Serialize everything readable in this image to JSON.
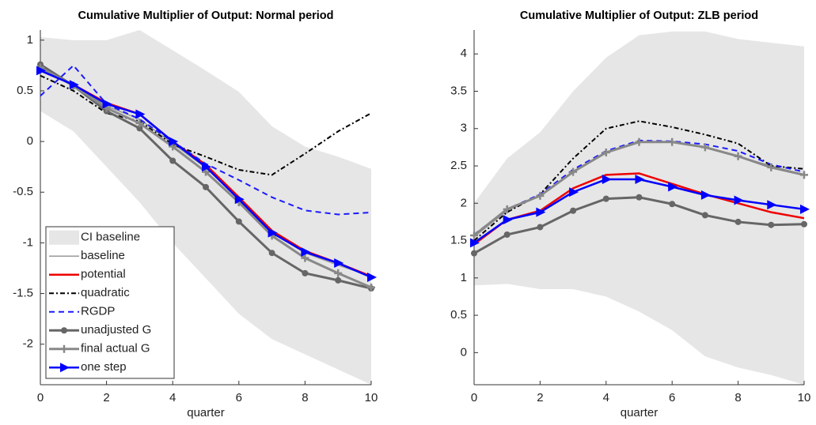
{
  "chart_data": [
    {
      "type": "line",
      "title": "Cumulative Multiplier of Output: Normal period",
      "x_label": "quarter",
      "x": [
        0,
        1,
        2,
        3,
        4,
        5,
        6,
        7,
        8,
        9,
        10
      ],
      "xlim": [
        0,
        10
      ],
      "xticks": [
        0,
        2,
        4,
        6,
        8,
        10
      ],
      "ylim": [
        -2.4,
        1.1
      ],
      "yticks": [
        -2,
        -1.5,
        -1,
        -0.5,
        0,
        0.5,
        1
      ],
      "legend": "lower left",
      "band": {
        "name": "CI baseline",
        "color": "#e6e6e6",
        "upper": [
          1.03,
          1.0,
          1.0,
          1.1,
          0.9,
          0.7,
          0.49,
          0.15,
          -0.05,
          -0.15,
          -0.27
        ],
        "lower": [
          0.3,
          0.1,
          -0.25,
          -0.6,
          -1.0,
          -1.35,
          -1.7,
          -1.95,
          -2.1,
          -2.25,
          -2.4
        ]
      },
      "series": [
        {
          "name": "baseline",
          "color": "#999999",
          "width": 1.5,
          "dash": "none",
          "marker": "none",
          "values": [
            0.73,
            0.55,
            0.35,
            0.22,
            -0.02,
            -0.26,
            -0.56,
            -0.9,
            -1.1,
            -1.22,
            -1.33
          ]
        },
        {
          "name": "potential",
          "color": "#ee0000",
          "width": 2.5,
          "dash": "none",
          "marker": "none",
          "values": [
            0.7,
            0.56,
            0.38,
            0.27,
            0.0,
            -0.23,
            -0.55,
            -0.88,
            -1.08,
            -1.2,
            -1.33
          ]
        },
        {
          "name": "quadratic",
          "color": "#000000",
          "width": 2,
          "dash": "6 3 2 3",
          "marker": "none",
          "values": [
            0.65,
            0.5,
            0.28,
            0.2,
            -0.03,
            -0.15,
            -0.28,
            -0.33,
            -0.12,
            0.1,
            0.28
          ]
        },
        {
          "name": "RGDP",
          "color": "#1a1aff",
          "width": 2,
          "dash": "7 5",
          "marker": "none",
          "values": [
            0.45,
            0.75,
            0.37,
            0.22,
            0.0,
            -0.22,
            -0.38,
            -0.55,
            -0.68,
            -0.72,
            -0.7
          ]
        },
        {
          "name": "unadjusted G",
          "color": "#666666",
          "width": 3,
          "dash": "none",
          "marker": "circle",
          "values": [
            0.76,
            0.55,
            0.3,
            0.13,
            -0.19,
            -0.45,
            -0.79,
            -1.1,
            -1.3,
            -1.37,
            -1.45
          ]
        },
        {
          "name": "final actual G",
          "color": "#888888",
          "width": 3,
          "dash": "none",
          "marker": "plus",
          "values": [
            0.73,
            0.55,
            0.33,
            0.18,
            -0.05,
            -0.3,
            -0.6,
            -0.93,
            -1.15,
            -1.3,
            -1.44
          ]
        },
        {
          "name": "one step",
          "color": "#0000ff",
          "width": 2.5,
          "dash": "none",
          "marker": "triangle",
          "values": [
            0.7,
            0.56,
            0.37,
            0.27,
            0.0,
            -0.25,
            -0.57,
            -0.9,
            -1.09,
            -1.2,
            -1.34
          ]
        }
      ]
    },
    {
      "type": "line",
      "title": "Cumulative Multiplier of Output: ZLB period",
      "x_label": "quarter",
      "x": [
        0,
        1,
        2,
        3,
        4,
        5,
        6,
        7,
        8,
        9,
        10
      ],
      "xlim": [
        0,
        10
      ],
      "xticks": [
        0,
        2,
        4,
        6,
        8,
        10
      ],
      "ylim": [
        -0.43,
        4.32
      ],
      "yticks": [
        0,
        0.5,
        1,
        1.5,
        2,
        2.5,
        3,
        3.5,
        4
      ],
      "band": {
        "color": "#e6e6e6",
        "upper": [
          2.0,
          2.6,
          2.95,
          3.5,
          3.95,
          4.25,
          4.3,
          4.3,
          4.2,
          4.15,
          4.1
        ],
        "lower": [
          0.9,
          0.92,
          0.85,
          0.85,
          0.75,
          0.55,
          0.3,
          -0.05,
          -0.2,
          -0.3,
          -0.43
        ]
      },
      "series": [
        {
          "color": "#999999",
          "width": 1.5,
          "dash": "none",
          "marker": "none",
          "values": [
            1.55,
            1.9,
            2.1,
            2.42,
            2.68,
            2.82,
            2.82,
            2.75,
            2.63,
            2.5,
            2.38
          ]
        },
        {
          "color": "#ee0000",
          "width": 2.5,
          "dash": "none",
          "marker": "none",
          "values": [
            1.45,
            1.78,
            1.9,
            2.2,
            2.38,
            2.4,
            2.26,
            2.12,
            2.0,
            1.88,
            1.8
          ]
        },
        {
          "color": "#000000",
          "width": 2,
          "dash": "6 3 2 3",
          "marker": "none",
          "values": [
            1.5,
            1.88,
            2.12,
            2.6,
            3.0,
            3.1,
            3.02,
            2.92,
            2.8,
            2.5,
            2.46
          ]
        },
        {
          "color": "#1a1aff",
          "width": 2,
          "dash": "7 5",
          "marker": "none",
          "values": [
            1.58,
            1.92,
            2.12,
            2.45,
            2.7,
            2.84,
            2.83,
            2.79,
            2.7,
            2.52,
            2.42
          ]
        },
        {
          "color": "#666666",
          "width": 3,
          "dash": "none",
          "marker": "circle",
          "values": [
            1.33,
            1.58,
            1.68,
            1.9,
            2.06,
            2.08,
            1.99,
            1.84,
            1.75,
            1.71,
            1.72
          ]
        },
        {
          "color": "#888888",
          "width": 3,
          "dash": "none",
          "marker": "plus",
          "values": [
            1.57,
            1.92,
            2.1,
            2.42,
            2.68,
            2.82,
            2.82,
            2.75,
            2.63,
            2.48,
            2.38
          ]
        },
        {
          "color": "#0000ff",
          "width": 2.5,
          "dash": "none",
          "marker": "triangle",
          "values": [
            1.47,
            1.78,
            1.88,
            2.15,
            2.32,
            2.32,
            2.22,
            2.11,
            2.04,
            1.98,
            1.92
          ]
        }
      ]
    }
  ]
}
